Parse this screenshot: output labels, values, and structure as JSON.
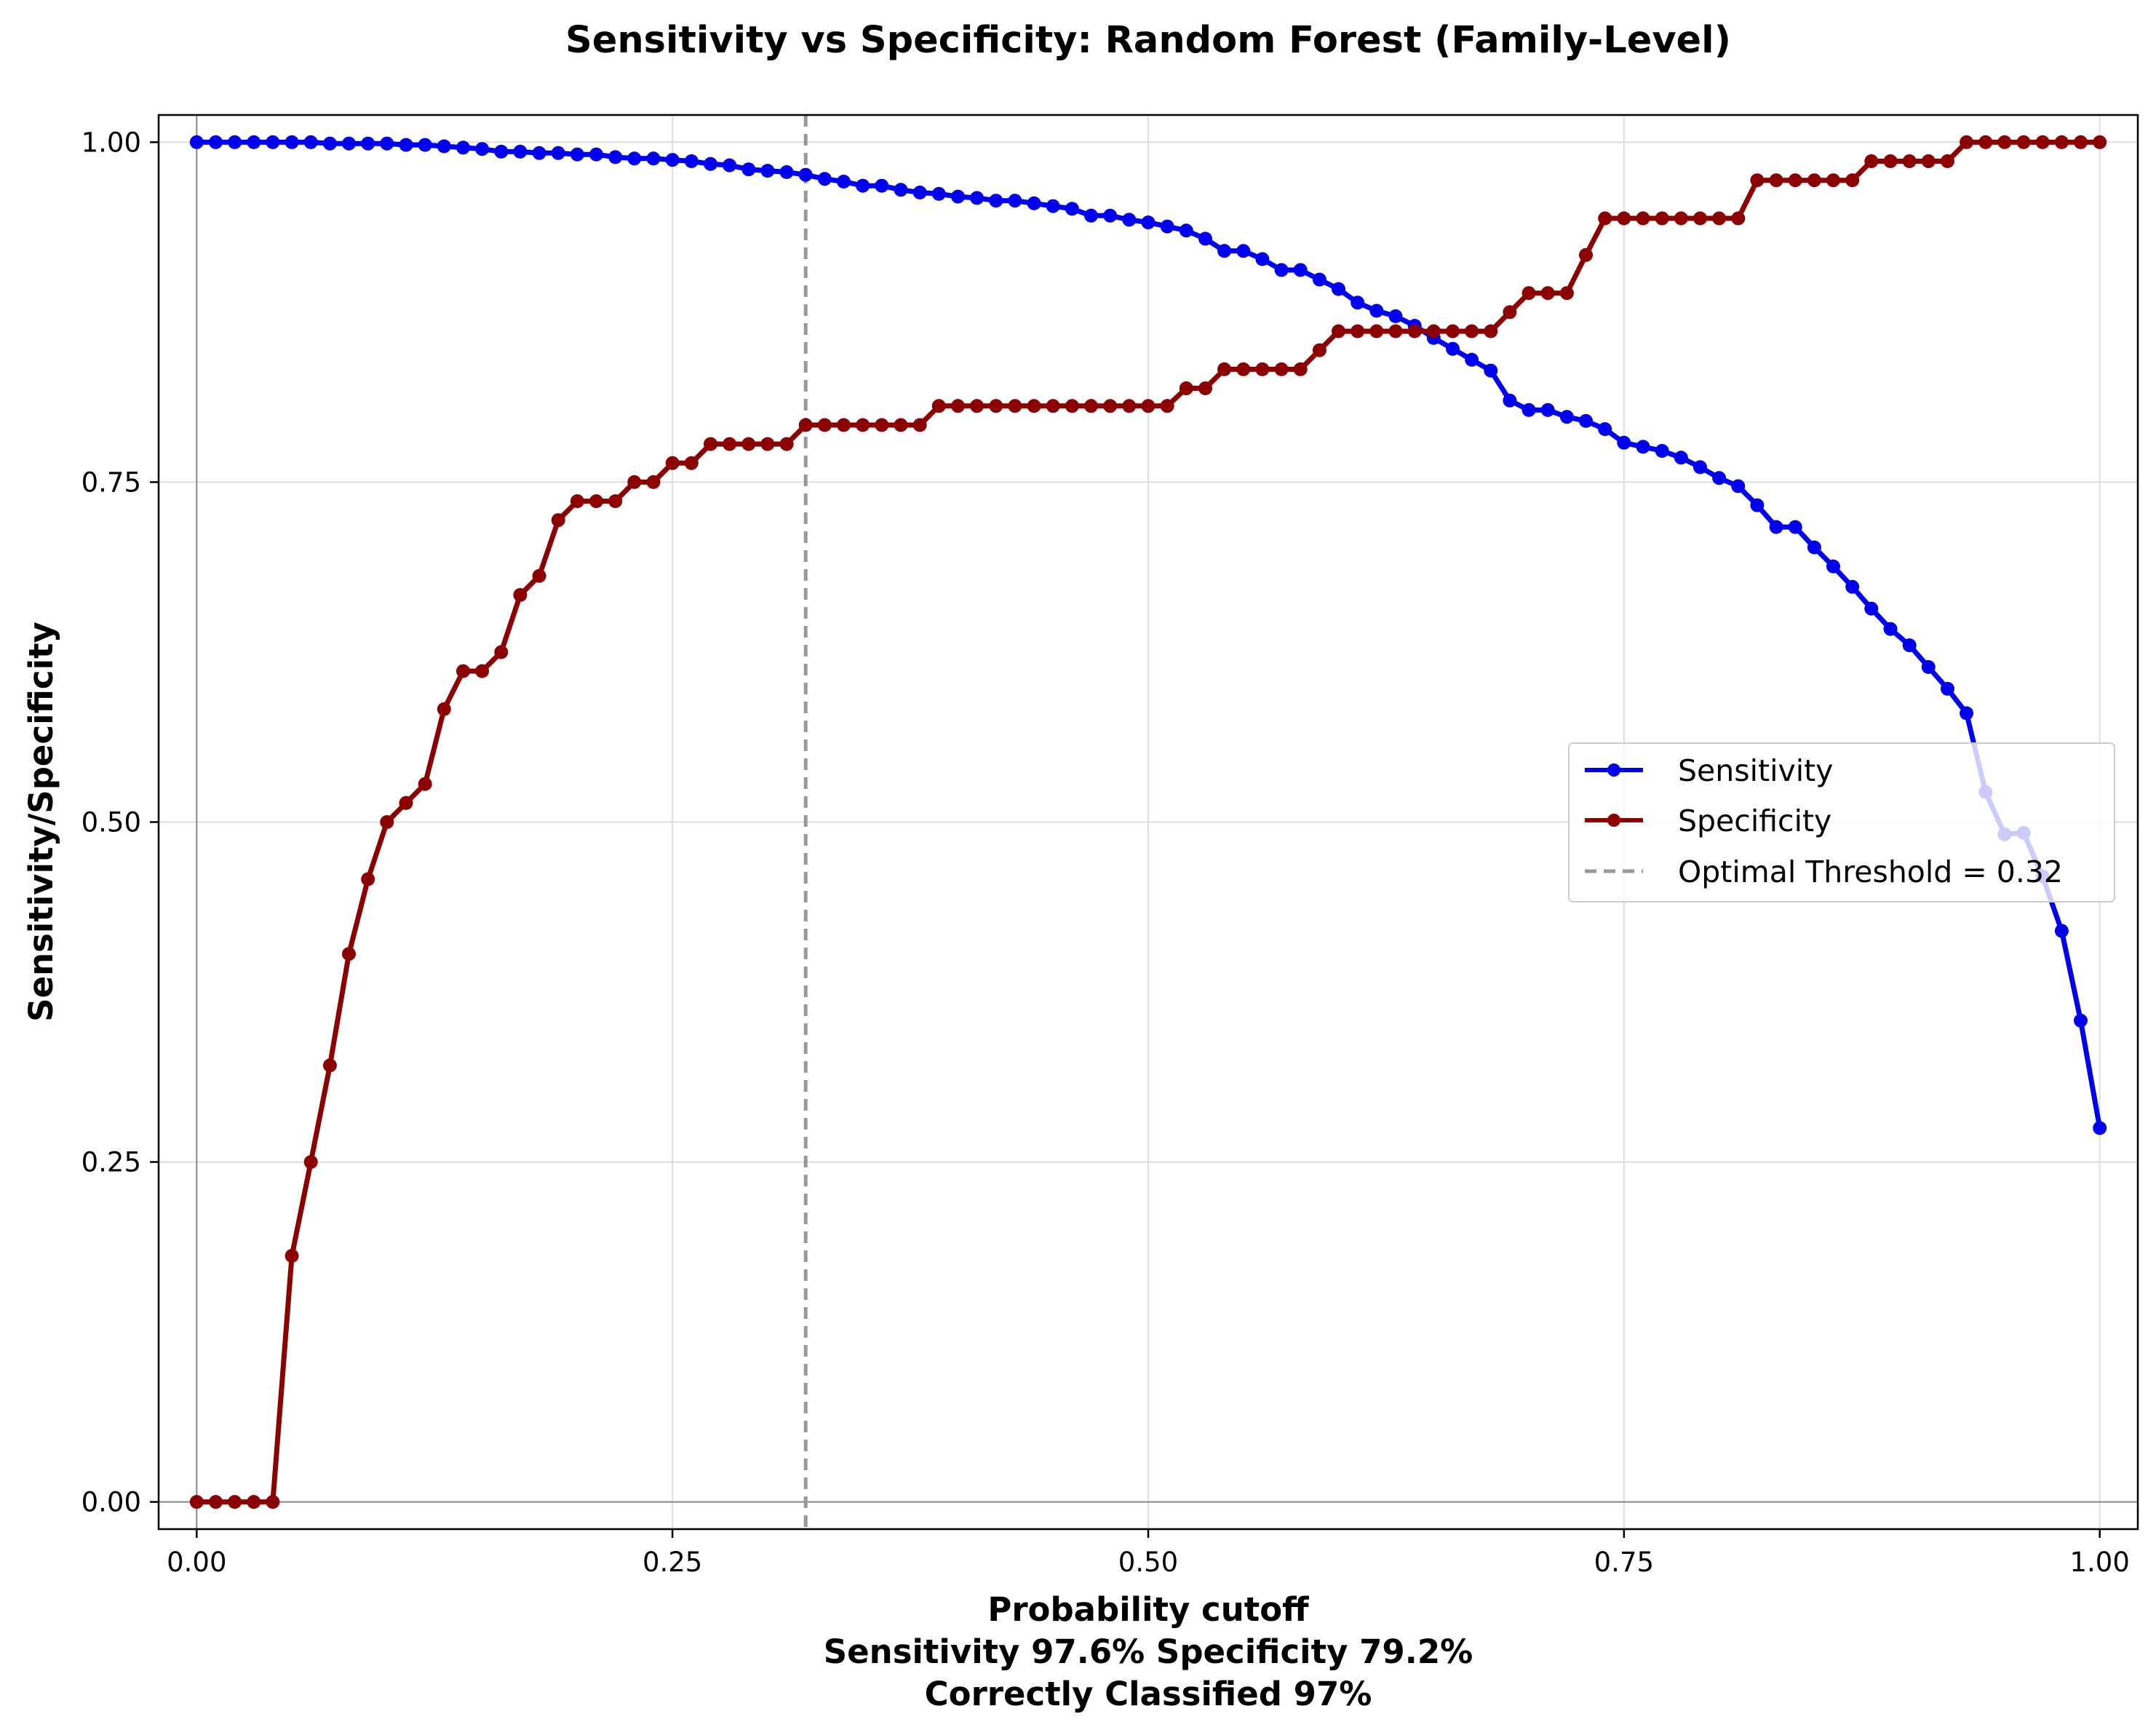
{
  "chart_data": {
    "type": "line",
    "title": "Sensitivity vs Specificity: Random Forest (Family-Level)",
    "xlabel": "Probability cutoff",
    "xlabel_lines": [
      "Probability cutoff",
      "Sensitivity 97.6% Specificity 79.2%",
      "Correctly Classified 97%"
    ],
    "ylabel": "Sensitivity/Specificity",
    "xlim": [
      -0.02,
      1.02
    ],
    "ylim": [
      -0.02,
      1.02
    ],
    "xticks": [
      "0.00",
      "0.25",
      "0.50",
      "0.75",
      "1.00"
    ],
    "yticks": [
      "0.00",
      "0.25",
      "0.50",
      "0.75",
      "1.00"
    ],
    "grid": true,
    "legend_position": "center-right",
    "x": [
      0.0,
      0.01,
      0.02,
      0.03,
      0.04,
      0.05,
      0.06,
      0.07,
      0.08,
      0.09,
      0.1,
      0.11,
      0.12,
      0.13,
      0.14,
      0.15,
      0.16,
      0.17,
      0.18,
      0.19,
      0.2,
      0.21,
      0.22,
      0.23,
      0.24,
      0.25,
      0.26,
      0.27,
      0.28,
      0.29,
      0.3,
      0.31,
      0.32,
      0.33,
      0.34,
      0.35,
      0.36,
      0.37,
      0.38,
      0.39,
      0.4,
      0.41,
      0.42,
      0.43,
      0.44,
      0.45,
      0.46,
      0.47,
      0.48,
      0.49,
      0.5,
      0.51,
      0.52,
      0.53,
      0.54,
      0.55,
      0.56,
      0.57,
      0.58,
      0.59,
      0.6,
      0.61,
      0.62,
      0.63,
      0.64,
      0.65,
      0.66,
      0.67,
      0.68,
      0.69,
      0.7,
      0.71,
      0.72,
      0.73,
      0.74,
      0.75,
      0.76,
      0.77,
      0.78,
      0.79,
      0.8,
      0.81,
      0.82,
      0.83,
      0.84,
      0.85,
      0.86,
      0.87,
      0.88,
      0.89,
      0.9,
      0.91,
      0.92,
      0.93,
      0.94,
      0.95,
      0.96,
      0.97,
      0.98,
      0.99,
      1.0
    ],
    "series": [
      {
        "name": "Sensitivity",
        "color": "#0000ee",
        "values": [
          1.0,
          1.0,
          1.0,
          1.0,
          1.0,
          1.0,
          1.0,
          0.999,
          0.999,
          0.999,
          0.999,
          0.998,
          0.998,
          0.997,
          0.996,
          0.995,
          0.993,
          0.993,
          0.992,
          0.992,
          0.991,
          0.991,
          0.989,
          0.988,
          0.988,
          0.987,
          0.986,
          0.984,
          0.983,
          0.98,
          0.979,
          0.978,
          0.976,
          0.973,
          0.971,
          0.968,
          0.968,
          0.965,
          0.963,
          0.962,
          0.96,
          0.959,
          0.957,
          0.957,
          0.955,
          0.953,
          0.951,
          0.946,
          0.946,
          0.943,
          0.941,
          0.938,
          0.935,
          0.929,
          0.92,
          0.92,
          0.914,
          0.906,
          0.906,
          0.899,
          0.892,
          0.882,
          0.876,
          0.872,
          0.865,
          0.856,
          0.848,
          0.84,
          0.832,
          0.81,
          0.803,
          0.803,
          0.798,
          0.795,
          0.789,
          0.779,
          0.776,
          0.773,
          0.768,
          0.761,
          0.753,
          0.747,
          0.733,
          0.717,
          0.717,
          0.702,
          0.688,
          0.673,
          0.657,
          0.642,
          0.63,
          0.614,
          0.598,
          0.58,
          0.522,
          0.491,
          0.492,
          0.46,
          0.42,
          0.354,
          0.275
        ]
      },
      {
        "name": "Specificity",
        "color": "#8b0000",
        "values": [
          0.0,
          0.0,
          0.0,
          0.0,
          0.0,
          0.181,
          0.25,
          0.321,
          0.403,
          0.458,
          0.5,
          0.514,
          0.528,
          0.583,
          0.611,
          0.611,
          0.625,
          0.667,
          0.681,
          0.722,
          0.736,
          0.736,
          0.736,
          0.75,
          0.75,
          0.764,
          0.764,
          0.778,
          0.778,
          0.778,
          0.778,
          0.778,
          0.792,
          0.792,
          0.792,
          0.792,
          0.792,
          0.792,
          0.792,
          0.806,
          0.806,
          0.806,
          0.806,
          0.806,
          0.806,
          0.806,
          0.806,
          0.806,
          0.806,
          0.806,
          0.806,
          0.806,
          0.819,
          0.819,
          0.833,
          0.833,
          0.833,
          0.833,
          0.833,
          0.847,
          0.861,
          0.861,
          0.861,
          0.861,
          0.861,
          0.861,
          0.861,
          0.861,
          0.861,
          0.875,
          0.889,
          0.889,
          0.889,
          0.917,
          0.944,
          0.944,
          0.944,
          0.944,
          0.944,
          0.944,
          0.944,
          0.944,
          0.972,
          0.972,
          0.972,
          0.972,
          0.972,
          0.972,
          0.986,
          0.986,
          0.986,
          0.986,
          0.986,
          1.0,
          1.0,
          1.0,
          1.0,
          1.0,
          1.0,
          1.0,
          1.0
        ]
      }
    ],
    "optimal_threshold": {
      "x": 0.32,
      "label": "Optimal Threshold = 0.32",
      "color": "#999999"
    }
  }
}
